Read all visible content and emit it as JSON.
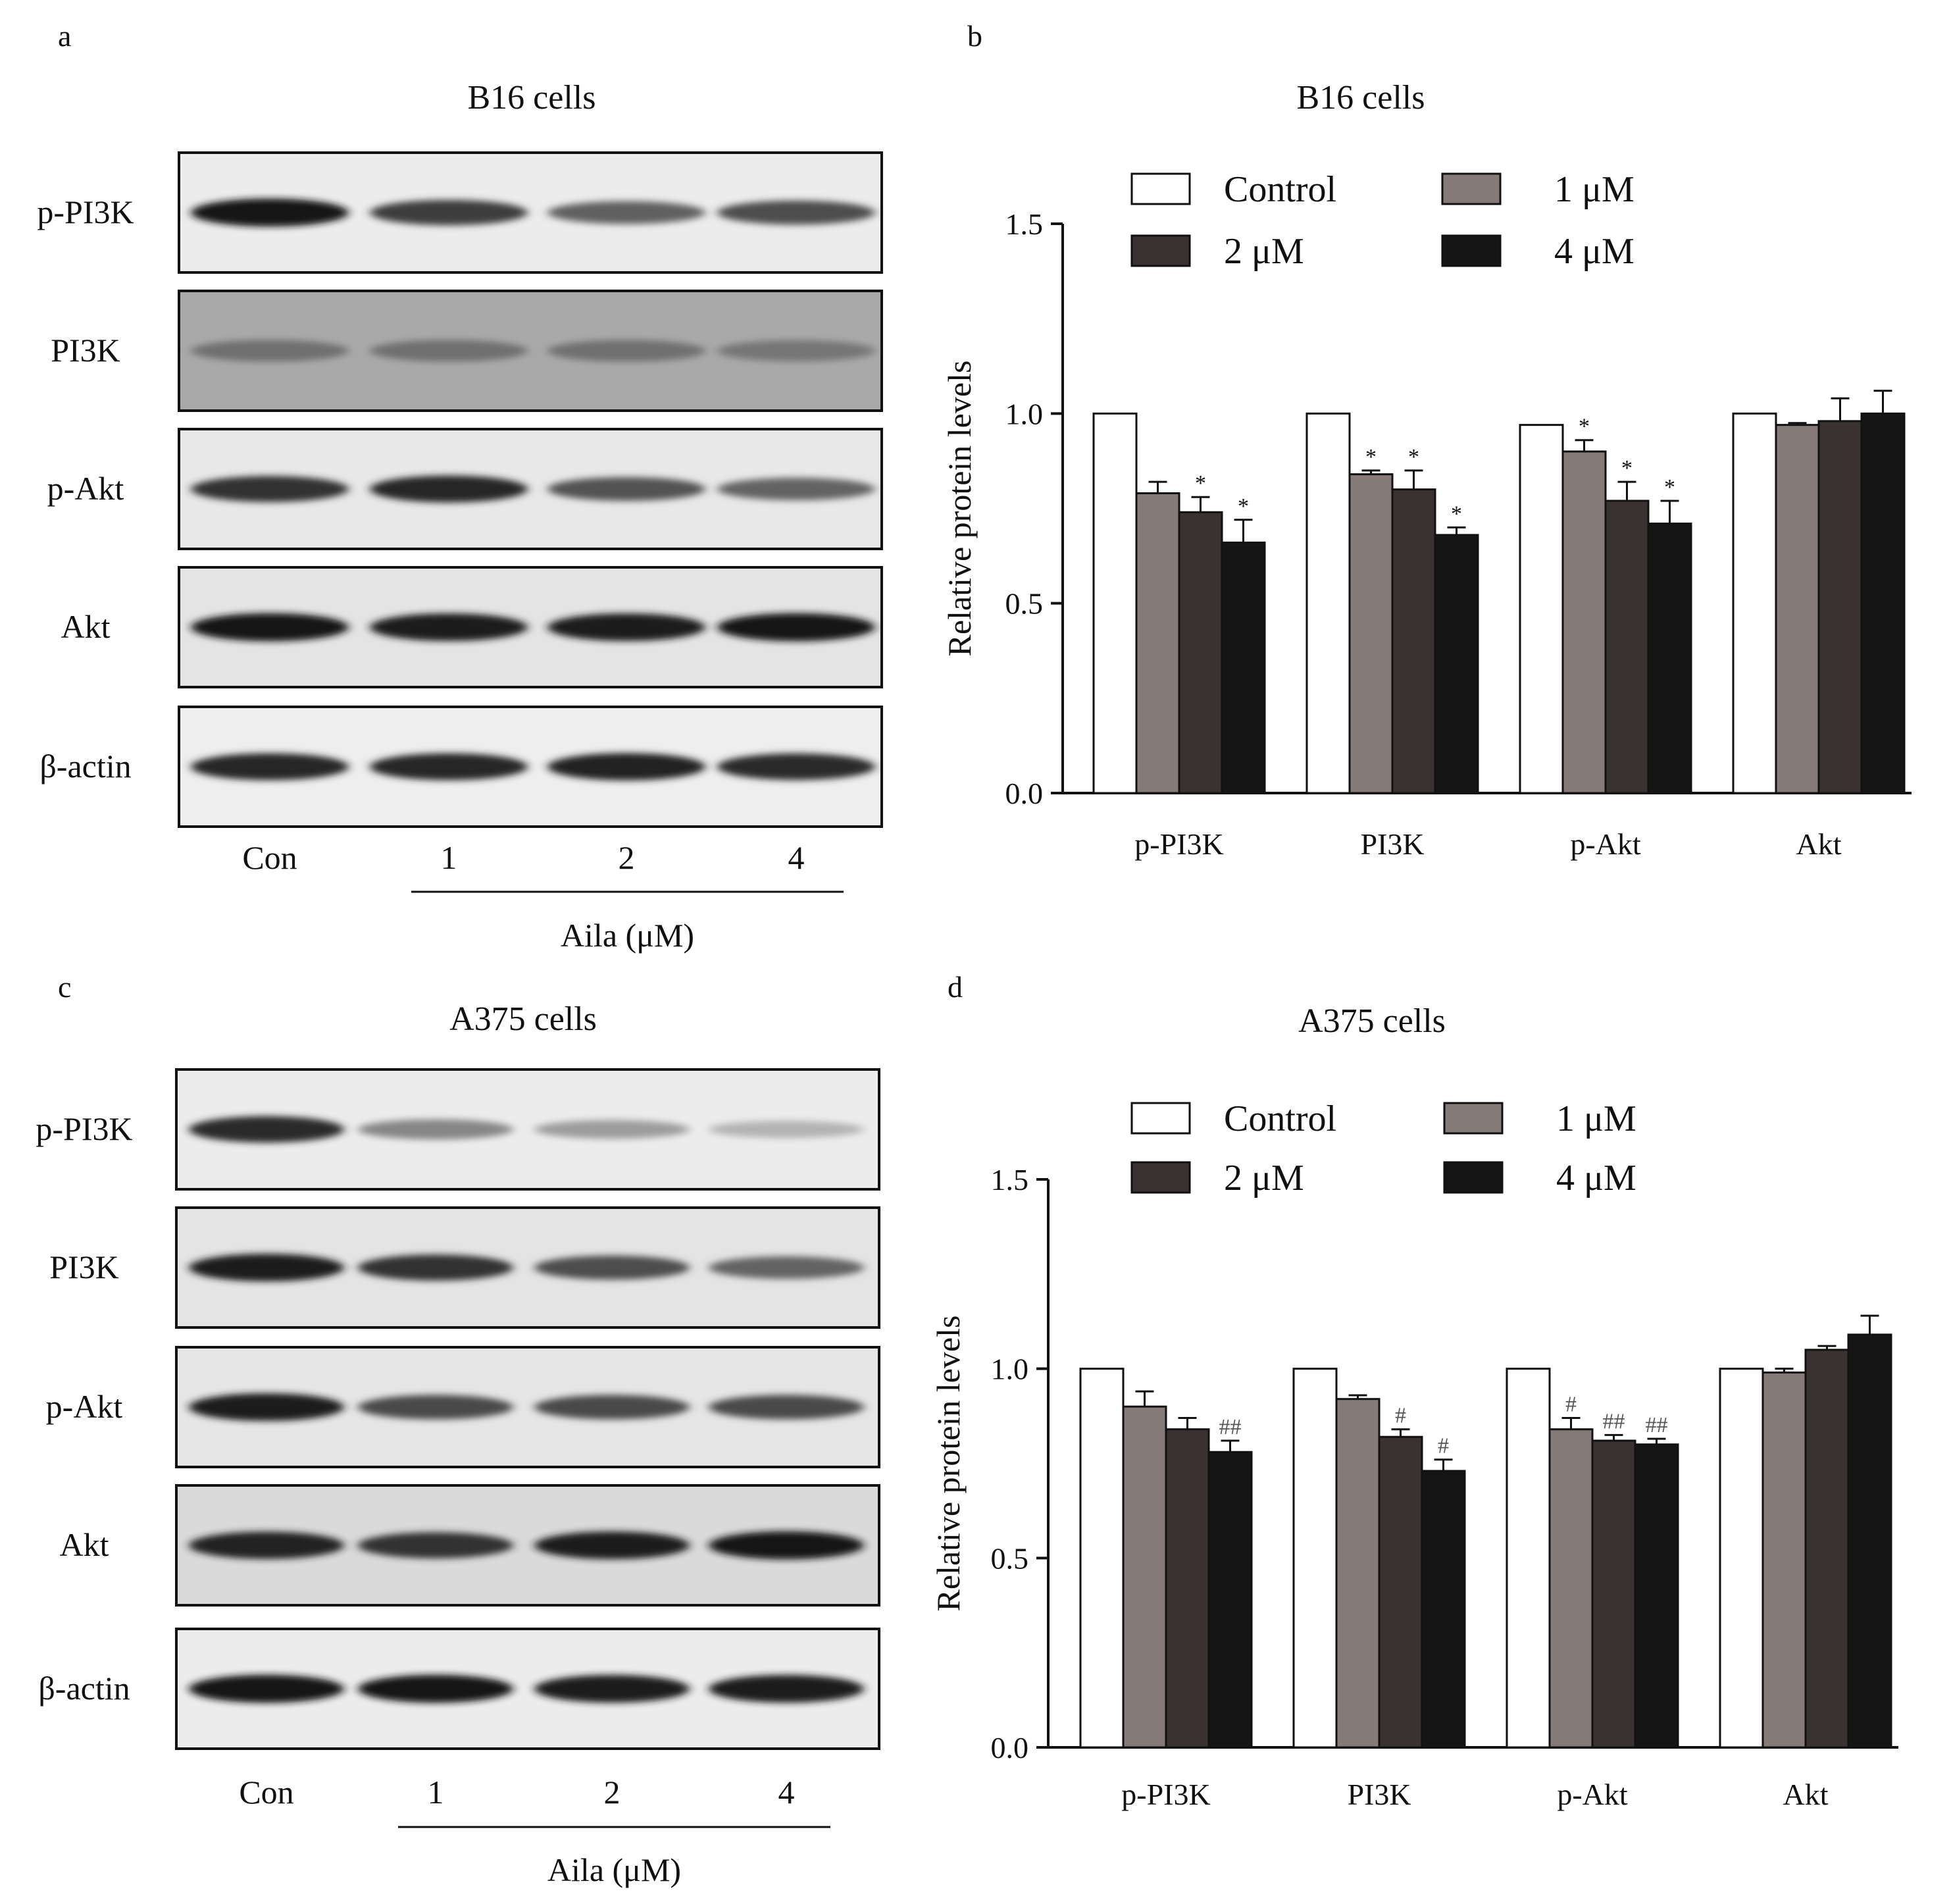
{
  "colors": {
    "control": "#ffffff",
    "uM1": "#857a77",
    "uM2": "#3a3230",
    "uM4": "#151515",
    "axis": "#111111"
  },
  "panels": {
    "a": {
      "letter": "a",
      "title": "B16 cells",
      "rows": [
        "p-PI3K",
        "PI3K",
        "p-Akt",
        "Akt",
        "β-actin"
      ],
      "lanes": [
        "Con",
        "1",
        "2",
        "4"
      ],
      "xlabel": "Aila (μM)",
      "band_intensity": [
        [
          0.95,
          0.78,
          0.62,
          0.7
        ],
        [
          0.55,
          0.55,
          0.55,
          0.52
        ],
        [
          0.82,
          0.88,
          0.68,
          0.6
        ],
        [
          0.95,
          0.92,
          0.92,
          0.95
        ],
        [
          0.88,
          0.88,
          0.9,
          0.86
        ]
      ],
      "band_bg": [
        "#ececec",
        "#a9a9a9",
        "#e8e8e8",
        "#e4e4e4",
        "#eeeeee"
      ]
    },
    "c": {
      "letter": "c",
      "title": "A375 cells",
      "rows": [
        "p-PI3K",
        "PI3K",
        "p-Akt",
        "Akt",
        "β-actin"
      ],
      "lanes": [
        "Con",
        "1",
        "2",
        "4"
      ],
      "xlabel": "Aila (μM)",
      "band_intensity": [
        [
          0.85,
          0.45,
          0.35,
          0.25
        ],
        [
          0.92,
          0.82,
          0.7,
          0.6
        ],
        [
          0.92,
          0.72,
          0.72,
          0.72
        ],
        [
          0.9,
          0.82,
          0.92,
          0.95
        ],
        [
          0.95,
          0.95,
          0.93,
          0.93
        ]
      ],
      "band_bg": [
        "#ececec",
        "#e4e4e4",
        "#e6e6e6",
        "#dadada",
        "#ececec"
      ]
    },
    "b": {
      "letter": "b",
      "title": "B16 cells"
    },
    "d": {
      "letter": "d",
      "title": "A375 cells"
    }
  },
  "chart_data": [
    {
      "id": "b",
      "type": "bar",
      "title": "B16 cells",
      "ylabel": "Relative protein levels",
      "xlabel": "",
      "ylim": [
        0,
        1.5
      ],
      "yticks": [
        "0.0",
        "0.5",
        "1.0",
        "1.5"
      ],
      "categories": [
        "p-PI3K",
        "PI3K",
        "p-Akt",
        "Akt"
      ],
      "legend": [
        "Control",
        "1 μM",
        "2 μM",
        "4 μM"
      ],
      "legend_position": "top",
      "series": [
        {
          "name": "Control",
          "values": [
            1.0,
            1.0,
            0.97,
            1.0
          ],
          "errors": [
            0,
            0,
            0,
            0
          ],
          "sig": [
            "",
            "",
            "",
            ""
          ]
        },
        {
          "name": "1 μM",
          "values": [
            0.79,
            0.84,
            0.9,
            0.97
          ],
          "errors": [
            0.03,
            0.01,
            0.03,
            0.005
          ],
          "sig": [
            "",
            "*",
            "*",
            ""
          ]
        },
        {
          "name": "2 μM",
          "values": [
            0.74,
            0.8,
            0.77,
            0.98
          ],
          "errors": [
            0.04,
            0.05,
            0.05,
            0.06
          ],
          "sig": [
            "*",
            "*",
            "*",
            ""
          ]
        },
        {
          "name": "4 μM",
          "values": [
            0.66,
            0.68,
            0.71,
            1.0
          ],
          "errors": [
            0.06,
            0.02,
            0.06,
            0.06
          ],
          "sig": [
            "*",
            "*",
            "*",
            ""
          ]
        }
      ]
    },
    {
      "id": "d",
      "type": "bar",
      "title": "A375 cells",
      "ylabel": "Relative protein levels",
      "xlabel": "",
      "ylim": [
        0,
        1.5
      ],
      "yticks": [
        "0.0",
        "0.5",
        "1.0",
        "1.5"
      ],
      "categories": [
        "p-PI3K",
        "PI3K",
        "p-Akt",
        "Akt"
      ],
      "legend": [
        "Control",
        "1 μM",
        "2 μM",
        "4 μM"
      ],
      "legend_position": "top",
      "series": [
        {
          "name": "Control",
          "values": [
            1.0,
            1.0,
            1.0,
            1.0
          ],
          "errors": [
            0,
            0,
            0,
            0
          ],
          "sig": [
            "",
            "",
            "",
            ""
          ]
        },
        {
          "name": "1 μM",
          "values": [
            0.9,
            0.92,
            0.84,
            0.99
          ],
          "errors": [
            0.04,
            0.01,
            0.03,
            0.01
          ],
          "sig": [
            "",
            "",
            "#",
            ""
          ]
        },
        {
          "name": "2 μM",
          "values": [
            0.84,
            0.82,
            0.81,
            1.05
          ],
          "errors": [
            0.03,
            0.02,
            0.015,
            0.01
          ],
          "sig": [
            "",
            "#",
            "##",
            ""
          ]
        },
        {
          "name": "4 μM",
          "values": [
            0.78,
            0.73,
            0.8,
            1.09
          ],
          "errors": [
            0.03,
            0.03,
            0.015,
            0.05
          ],
          "sig": [
            "##",
            "#",
            "##",
            ""
          ]
        }
      ]
    }
  ]
}
